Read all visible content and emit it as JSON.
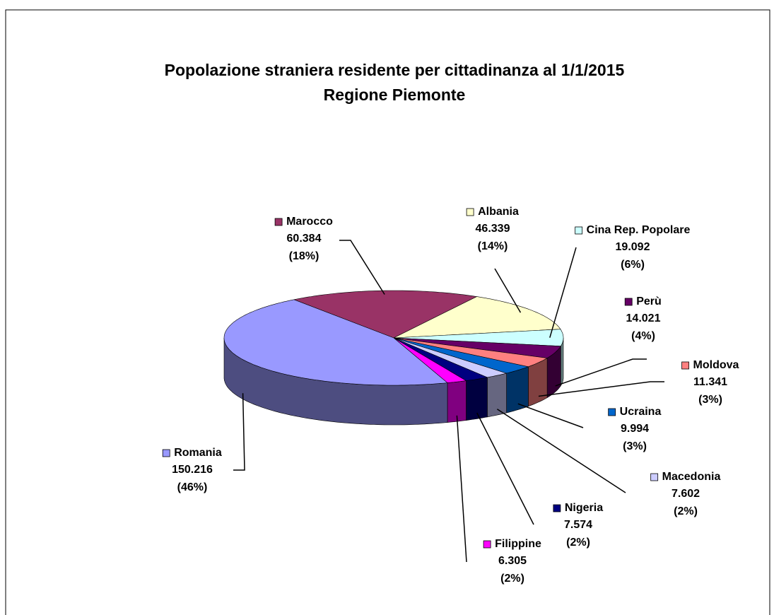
{
  "chart_data": {
    "type": "pie3d",
    "title": "Popolazione straniera residente per cittadinanza al 1/1/2015",
    "subtitle": "Regione Piemonte",
    "categories": [
      "Marocco",
      "Albania",
      "Cina Rep. Popolare",
      "Perù",
      "Moldova",
      "Ucraina",
      "Macedonia",
      "Nigeria",
      "Filippine",
      "Romania"
    ],
    "values": [
      60384,
      46339,
      19092,
      14021,
      11341,
      9994,
      7602,
      7574,
      6305,
      150216
    ],
    "value_labels": [
      "60.384",
      "46.339",
      "19.092",
      "14.021",
      "11.341",
      "9.994",
      "7.602",
      "7.574",
      "6.305",
      "150.216"
    ],
    "percent_labels": [
      "(18%)",
      "(14%)",
      "(6%)",
      "(4%)",
      "(3%)",
      "(3%)",
      "(2%)",
      "(2%)",
      "(2%)",
      "(46%)"
    ],
    "colors": [
      "#993366",
      "#ffffcc",
      "#ccffff",
      "#660066",
      "#ff8080",
      "#0066cc",
      "#ccccff",
      "#000080",
      "#ff00ff",
      "#9999ff"
    ]
  }
}
